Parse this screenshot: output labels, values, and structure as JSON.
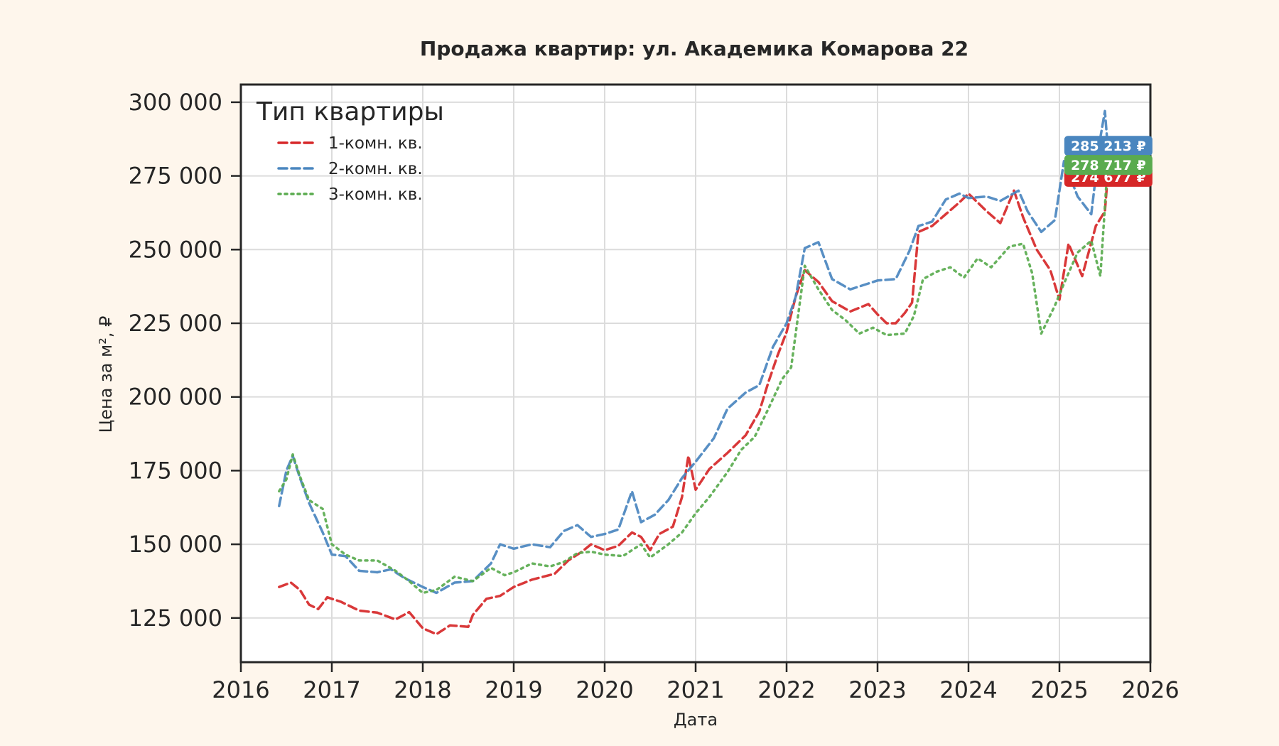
{
  "chart_data": {
    "type": "line",
    "title": "Продажа квартир: ул. Академика Комарова 22",
    "xlabel": "Дата",
    "ylabel": "Цена за м², ₽",
    "xlim": [
      2016.0,
      2026.0
    ],
    "ylim": [
      110000,
      306000
    ],
    "x_ticks": [
      "2016",
      "2017",
      "2018",
      "2019",
      "2020",
      "2021",
      "2022",
      "2023",
      "2024",
      "2025",
      "2026"
    ],
    "y_ticks": [
      {
        "value": 125000,
        "label": "125 000"
      },
      {
        "value": 150000,
        "label": "150 000"
      },
      {
        "value": 175000,
        "label": "175 000"
      },
      {
        "value": 200000,
        "label": "200 000"
      },
      {
        "value": 225000,
        "label": "225 000"
      },
      {
        "value": 250000,
        "label": "250 000"
      },
      {
        "value": 275000,
        "label": "275 000"
      },
      {
        "value": 300000,
        "label": "300 000"
      }
    ],
    "grid": true,
    "legend": {
      "title": "Тип квартиры",
      "placement": "top-left"
    },
    "series": [
      {
        "name": "1-комн. кв.",
        "color": "#d62728",
        "dash": "dashed",
        "end_label": "274 677 ₽",
        "points": [
          [
            2016.42,
            135500
          ],
          [
            2016.55,
            137000
          ],
          [
            2016.65,
            134500
          ],
          [
            2016.75,
            129500
          ],
          [
            2016.85,
            128000
          ],
          [
            2016.95,
            132000
          ],
          [
            2017.1,
            130500
          ],
          [
            2017.3,
            127500
          ],
          [
            2017.5,
            126800
          ],
          [
            2017.7,
            124500
          ],
          [
            2017.85,
            127000
          ],
          [
            2018.0,
            121500
          ],
          [
            2018.15,
            119500
          ],
          [
            2018.3,
            122500
          ],
          [
            2018.5,
            122000
          ],
          [
            2018.55,
            126000
          ],
          [
            2018.7,
            131500
          ],
          [
            2018.85,
            132500
          ],
          [
            2019.0,
            135500
          ],
          [
            2019.2,
            138000
          ],
          [
            2019.45,
            140000
          ],
          [
            2019.6,
            144500
          ],
          [
            2019.75,
            147500
          ],
          [
            2019.85,
            150000
          ],
          [
            2020.0,
            148000
          ],
          [
            2020.15,
            149500
          ],
          [
            2020.3,
            154000
          ],
          [
            2020.4,
            152500
          ],
          [
            2020.5,
            148000
          ],
          [
            2020.6,
            153500
          ],
          [
            2020.75,
            156000
          ],
          [
            2020.85,
            166000
          ],
          [
            2020.92,
            180000
          ],
          [
            2021.0,
            168500
          ],
          [
            2021.15,
            175500
          ],
          [
            2021.35,
            181000
          ],
          [
            2021.55,
            187000
          ],
          [
            2021.7,
            195000
          ],
          [
            2021.8,
            205000
          ],
          [
            2021.9,
            214000
          ],
          [
            2022.0,
            222000
          ],
          [
            2022.1,
            234000
          ],
          [
            2022.2,
            243000
          ],
          [
            2022.35,
            239000
          ],
          [
            2022.5,
            232500
          ],
          [
            2022.7,
            229000
          ],
          [
            2022.9,
            231500
          ],
          [
            2023.0,
            228000
          ],
          [
            2023.1,
            225000
          ],
          [
            2023.2,
            225000
          ],
          [
            2023.3,
            228500
          ],
          [
            2023.38,
            232000
          ],
          [
            2023.45,
            256000
          ],
          [
            2023.6,
            258000
          ],
          [
            2023.75,
            262000
          ],
          [
            2023.9,
            266000
          ],
          [
            2024.0,
            269000
          ],
          [
            2024.2,
            263000
          ],
          [
            2024.35,
            259000
          ],
          [
            2024.5,
            270000
          ],
          [
            2024.6,
            261000
          ],
          [
            2024.75,
            250000
          ],
          [
            2024.9,
            243000
          ],
          [
            2025.0,
            233000
          ],
          [
            2025.1,
            252000
          ],
          [
            2025.25,
            241000
          ],
          [
            2025.4,
            258000
          ],
          [
            2025.5,
            263000
          ],
          [
            2025.53,
            274677
          ]
        ]
      },
      {
        "name": "2-комн. кв.",
        "color": "#4a86bf",
        "dash": "dashed",
        "end_label": "285 213 ₽",
        "points": [
          [
            2016.42,
            163000
          ],
          [
            2016.5,
            175000
          ],
          [
            2016.57,
            180000
          ],
          [
            2016.65,
            172500
          ],
          [
            2016.75,
            164000
          ],
          [
            2016.9,
            154000
          ],
          [
            2017.0,
            146500
          ],
          [
            2017.15,
            146000
          ],
          [
            2017.3,
            141000
          ],
          [
            2017.5,
            140500
          ],
          [
            2017.65,
            141500
          ],
          [
            2017.8,
            138500
          ],
          [
            2018.0,
            135500
          ],
          [
            2018.15,
            133500
          ],
          [
            2018.35,
            137000
          ],
          [
            2018.55,
            137500
          ],
          [
            2018.75,
            143500
          ],
          [
            2018.85,
            150000
          ],
          [
            2019.0,
            148500
          ],
          [
            2019.2,
            150000
          ],
          [
            2019.4,
            149000
          ],
          [
            2019.55,
            154500
          ],
          [
            2019.7,
            156500
          ],
          [
            2019.85,
            152500
          ],
          [
            2020.0,
            153500
          ],
          [
            2020.15,
            155000
          ],
          [
            2020.3,
            168000
          ],
          [
            2020.4,
            157500
          ],
          [
            2020.55,
            160000
          ],
          [
            2020.7,
            165000
          ],
          [
            2020.85,
            172500
          ],
          [
            2021.0,
            178000
          ],
          [
            2021.2,
            186000
          ],
          [
            2021.35,
            196000
          ],
          [
            2021.55,
            201500
          ],
          [
            2021.7,
            204000
          ],
          [
            2021.85,
            217000
          ],
          [
            2022.0,
            225000
          ],
          [
            2022.1,
            234000
          ],
          [
            2022.2,
            250500
          ],
          [
            2022.35,
            252500
          ],
          [
            2022.5,
            240000
          ],
          [
            2022.7,
            236500
          ],
          [
            2022.9,
            238500
          ],
          [
            2023.0,
            239500
          ],
          [
            2023.2,
            240000
          ],
          [
            2023.35,
            249500
          ],
          [
            2023.45,
            258000
          ],
          [
            2023.6,
            259500
          ],
          [
            2023.75,
            267000
          ],
          [
            2023.9,
            269000
          ],
          [
            2024.0,
            267500
          ],
          [
            2024.2,
            268000
          ],
          [
            2024.35,
            266500
          ],
          [
            2024.55,
            270000
          ],
          [
            2024.65,
            263000
          ],
          [
            2024.8,
            256000
          ],
          [
            2024.95,
            260000
          ],
          [
            2025.05,
            280000
          ],
          [
            2025.2,
            268000
          ],
          [
            2025.35,
            262000
          ],
          [
            2025.45,
            288000
          ],
          [
            2025.5,
            297000
          ],
          [
            2025.53,
            285213
          ]
        ]
      },
      {
        "name": "3-комн. кв.",
        "color": "#5aab4f",
        "dash": "dotted",
        "end_label": "278 717 ₽",
        "points": [
          [
            2016.42,
            168000
          ],
          [
            2016.5,
            172000
          ],
          [
            2016.57,
            180500
          ],
          [
            2016.65,
            173000
          ],
          [
            2016.75,
            165000
          ],
          [
            2016.9,
            162000
          ],
          [
            2017.0,
            150000
          ],
          [
            2017.15,
            146500
          ],
          [
            2017.3,
            144500
          ],
          [
            2017.5,
            144500
          ],
          [
            2017.7,
            141000
          ],
          [
            2017.85,
            137500
          ],
          [
            2018.0,
            133500
          ],
          [
            2018.15,
            134500
          ],
          [
            2018.35,
            139000
          ],
          [
            2018.55,
            137500
          ],
          [
            2018.75,
            142000
          ],
          [
            2018.9,
            139500
          ],
          [
            2019.0,
            140500
          ],
          [
            2019.2,
            143500
          ],
          [
            2019.4,
            142500
          ],
          [
            2019.55,
            144000
          ],
          [
            2019.7,
            147000
          ],
          [
            2019.85,
            147500
          ],
          [
            2020.0,
            146500
          ],
          [
            2020.2,
            146000
          ],
          [
            2020.4,
            150000
          ],
          [
            2020.5,
            145500
          ],
          [
            2020.7,
            150000
          ],
          [
            2020.85,
            154000
          ],
          [
            2021.0,
            160500
          ],
          [
            2021.15,
            166000
          ],
          [
            2021.35,
            174500
          ],
          [
            2021.5,
            182000
          ],
          [
            2021.65,
            186500
          ],
          [
            2021.8,
            196000
          ],
          [
            2021.95,
            206000
          ],
          [
            2022.05,
            210000
          ],
          [
            2022.2,
            244500
          ],
          [
            2022.35,
            236500
          ],
          [
            2022.5,
            229500
          ],
          [
            2022.65,
            226000
          ],
          [
            2022.8,
            221500
          ],
          [
            2022.95,
            223500
          ],
          [
            2023.1,
            221000
          ],
          [
            2023.3,
            221500
          ],
          [
            2023.4,
            227500
          ],
          [
            2023.5,
            240000
          ],
          [
            2023.65,
            242500
          ],
          [
            2023.8,
            244000
          ],
          [
            2023.95,
            240500
          ],
          [
            2024.1,
            247000
          ],
          [
            2024.25,
            244000
          ],
          [
            2024.45,
            251000
          ],
          [
            2024.6,
            252000
          ],
          [
            2024.7,
            242000
          ],
          [
            2024.8,
            221500
          ],
          [
            2024.95,
            231000
          ],
          [
            2025.05,
            238500
          ],
          [
            2025.2,
            249000
          ],
          [
            2025.35,
            253000
          ],
          [
            2025.45,
            241000
          ],
          [
            2025.53,
            278717
          ]
        ]
      }
    ]
  }
}
